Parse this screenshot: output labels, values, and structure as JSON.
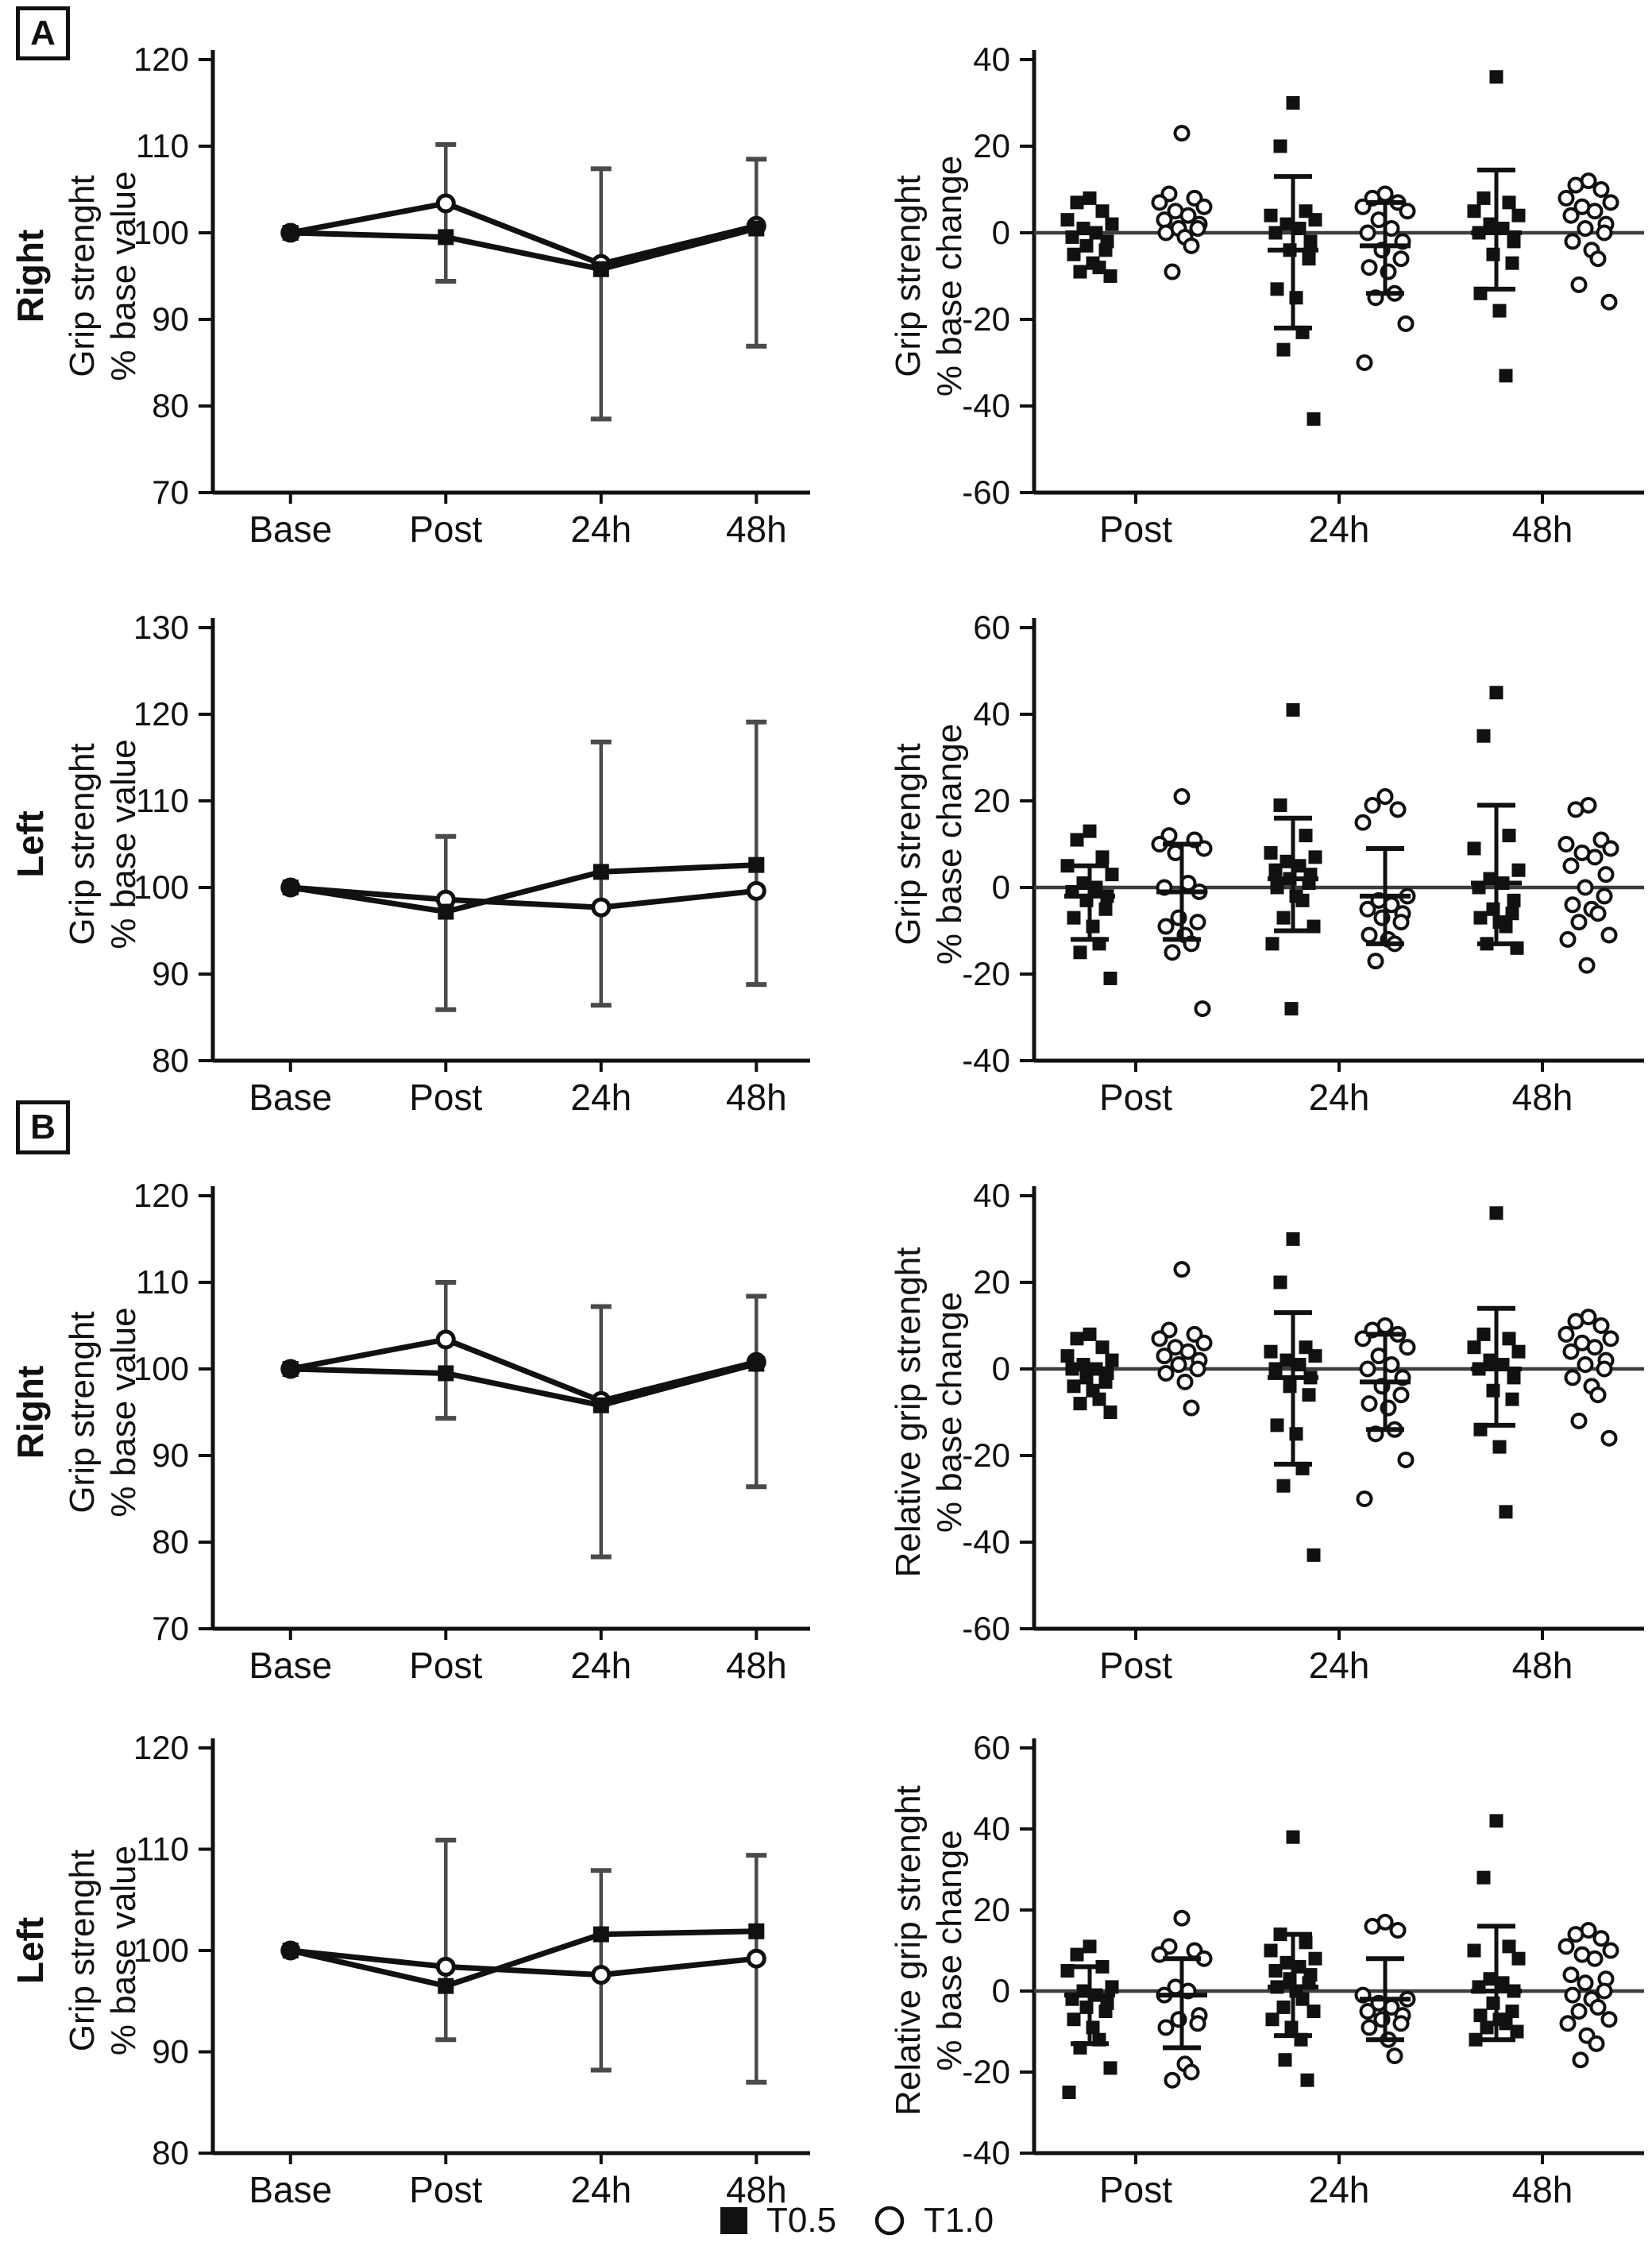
{
  "panel_labels": {
    "A": "A",
    "B": "B"
  },
  "legend": {
    "items": [
      {
        "label": "T0.5",
        "marker": "square"
      },
      {
        "label": "T1.0",
        "marker": "circle"
      }
    ]
  },
  "colors": {
    "ink": "#111111",
    "zero_line": "#3d3d3d",
    "err_line": "#4a4a4a",
    "background": "#ffffff"
  },
  "chart_data": [
    {
      "id": "panel-a-right-grip-value",
      "type": "line",
      "panel": "A",
      "row_label": "Right",
      "ylabel": [
        "Grip strenght",
        "% base value"
      ],
      "categories": [
        "Base",
        "Post",
        "24h",
        "48h"
      ],
      "y_min": 70,
      "y_max": 120,
      "y_step": 10,
      "series": [
        {
          "name": "T0.5",
          "marker": "square",
          "values": [
            100,
            99.5,
            95.8,
            100.5
          ]
        },
        {
          "name": "T1.0",
          "marker": "circle",
          "values": [
            100,
            103.4,
            96.4,
            100.8
          ]
        }
      ],
      "error_bars": [
        {
          "cat": "Post",
          "low": 94.4,
          "high": 110.2
        },
        {
          "cat": "24h",
          "low": 78.5,
          "high": 107.4
        },
        {
          "cat": "48h",
          "low": 86.9,
          "high": 108.5
        }
      ]
    },
    {
      "id": "panel-a-right-grip-change",
      "type": "scatter",
      "panel": "A",
      "ylabel": [
        "Grip strenght",
        "% base change"
      ],
      "categories": [
        "Post",
        "24h",
        "48h"
      ],
      "y_min": -60,
      "y_max": 40,
      "y_step": 20,
      "groups": [
        {
          "cat": "Post",
          "series": "T0.5",
          "points": [
            8,
            7,
            5,
            3,
            2,
            1,
            0,
            -1,
            -2,
            -3,
            -4,
            -5,
            -7,
            -8,
            -9,
            -10
          ]
        },
        {
          "cat": "Post",
          "series": "T1.0",
          "points": [
            23,
            9,
            8,
            7,
            6,
            5,
            4,
            3,
            2,
            1,
            1,
            0,
            -1,
            -3,
            -9
          ]
        },
        {
          "cat": "24h",
          "series": "T0.5",
          "points": [
            30,
            20,
            5,
            4,
            3,
            2,
            1,
            0,
            -2,
            -4,
            -6,
            -13,
            -15,
            -23,
            -27,
            -43
          ],
          "err": {
            "low": -22,
            "mid": -4,
            "high": 13
          }
        },
        {
          "cat": "24h",
          "series": "T1.0",
          "points": [
            9,
            8,
            7,
            6,
            5,
            3,
            1,
            0,
            -2,
            -4,
            -6,
            -8,
            -9,
            -14,
            -15,
            -21,
            -30
          ],
          "err": {
            "low": -14,
            "mid": -3,
            "high": 7
          }
        },
        {
          "cat": "48h",
          "series": "T0.5",
          "points": [
            36,
            8,
            7,
            5,
            4,
            2,
            1,
            0,
            -2,
            -5,
            -7,
            -14,
            -18,
            -33
          ],
          "err": {
            "low": -13,
            "mid": 0,
            "high": 14.5
          }
        },
        {
          "cat": "48h",
          "series": "T1.0",
          "points": [
            12,
            11,
            10,
            8,
            7,
            6,
            5,
            4,
            2,
            1,
            0,
            -2,
            -4,
            -6,
            -12,
            -16
          ]
        }
      ]
    },
    {
      "id": "panel-a-left-grip-value",
      "type": "line",
      "panel": "A",
      "row_label": "Left",
      "ylabel": [
        "Grip strenght",
        "% base value"
      ],
      "categories": [
        "Base",
        "Post",
        "24h",
        "48h"
      ],
      "y_min": 80,
      "y_max": 130,
      "y_step": 10,
      "series": [
        {
          "name": "T0.5",
          "marker": "square",
          "values": [
            100,
            97.2,
            101.8,
            102.6
          ]
        },
        {
          "name": "T1.0",
          "marker": "circle",
          "values": [
            100,
            98.6,
            97.7,
            99.6
          ]
        }
      ],
      "error_bars": [
        {
          "cat": "Post",
          "low": 85.9,
          "high": 105.9
        },
        {
          "cat": "24h",
          "low": 86.4,
          "high": 116.8
        },
        {
          "cat": "48h",
          "low": 88.8,
          "high": 119.1
        }
      ]
    },
    {
      "id": "panel-a-left-grip-change",
      "type": "scatter",
      "panel": "A",
      "ylabel": [
        "Grip strenght",
        "% base change"
      ],
      "categories": [
        "Post",
        "24h",
        "48h"
      ],
      "y_min": -40,
      "y_max": 60,
      "y_step": 20,
      "groups": [
        {
          "cat": "Post",
          "series": "T0.5",
          "points": [
            13,
            11,
            7,
            5,
            3,
            1,
            0,
            -1,
            -2,
            -3,
            -5,
            -7,
            -9,
            -13,
            -15,
            -21
          ],
          "err": {
            "low": -12,
            "mid": -2,
            "high": 5
          }
        },
        {
          "cat": "Post",
          "series": "T1.0",
          "points": [
            21,
            12,
            11,
            10,
            9,
            8,
            1,
            0,
            -1,
            -7,
            -8,
            -9,
            -11,
            -13,
            -15,
            -28
          ],
          "err": {
            "low": -12,
            "mid": -1,
            "high": 10
          }
        },
        {
          "cat": "24h",
          "series": "T0.5",
          "points": [
            41,
            19,
            12,
            8,
            7,
            6,
            5,
            4,
            3,
            2,
            1,
            0,
            -2,
            -3,
            -7,
            -9,
            -13,
            -28
          ],
          "err": {
            "low": -10,
            "mid": 2,
            "high": 16
          }
        },
        {
          "cat": "24h",
          "series": "T1.0",
          "points": [
            21,
            19,
            18,
            15,
            -2,
            -3,
            -4,
            -5,
            -6,
            -7,
            -8,
            -11,
            -12,
            -13,
            -17
          ],
          "err": {
            "low": -13,
            "mid": -2,
            "high": 9
          }
        },
        {
          "cat": "48h",
          "series": "T0.5",
          "points": [
            45,
            35,
            12,
            9,
            4,
            2,
            1,
            0,
            -3,
            -5,
            -6,
            -7,
            -8,
            -9,
            -13,
            -14
          ],
          "err": {
            "low": -13,
            "mid": 1,
            "high": 19
          }
        },
        {
          "cat": "48h",
          "series": "T1.0",
          "points": [
            19,
            18,
            11,
            10,
            9,
            8,
            7,
            5,
            3,
            0,
            -2,
            -4,
            -5,
            -6,
            -8,
            -11,
            -12,
            -18
          ]
        }
      ]
    },
    {
      "id": "panel-b-right-grip-value",
      "type": "line",
      "panel": "B",
      "row_label": "Right",
      "ylabel": [
        "Grip strenght",
        "% base value"
      ],
      "categories": [
        "Base",
        "Post",
        "24h",
        "48h"
      ],
      "y_min": 70,
      "y_max": 120,
      "y_step": 10,
      "series": [
        {
          "name": "T0.5",
          "marker": "square",
          "values": [
            100,
            99.5,
            95.8,
            100.6
          ]
        },
        {
          "name": "T1.0",
          "marker": "circle",
          "values": [
            100,
            103.4,
            96.3,
            100.8
          ]
        }
      ],
      "error_bars": [
        {
          "cat": "Post",
          "low": 94.3,
          "high": 110.0
        },
        {
          "cat": "24h",
          "low": 78.3,
          "high": 107.2
        },
        {
          "cat": "48h",
          "low": 86.4,
          "high": 108.4
        }
      ]
    },
    {
      "id": "panel-b-right-grip-change",
      "type": "scatter",
      "panel": "B",
      "ylabel": [
        "Relative grip strenght",
        "% base change"
      ],
      "categories": [
        "Post",
        "24h",
        "48h"
      ],
      "y_min": -60,
      "y_max": 40,
      "y_step": 20,
      "groups": [
        {
          "cat": "Post",
          "series": "T0.5",
          "points": [
            8,
            7,
            5,
            3,
            2,
            1,
            0,
            0,
            -1,
            -2,
            -3,
            -4,
            -5,
            -7,
            -8,
            -10
          ]
        },
        {
          "cat": "Post",
          "series": "T1.0",
          "points": [
            23,
            9,
            8,
            7,
            6,
            5,
            4,
            3,
            2,
            1,
            0,
            -1,
            -3,
            -9
          ]
        },
        {
          "cat": "24h",
          "series": "T0.5",
          "points": [
            30,
            20,
            5,
            4,
            3,
            2,
            1,
            0,
            -2,
            -4,
            -6,
            -13,
            -15,
            -23,
            -27,
            -43
          ],
          "err": {
            "low": -22,
            "mid": -2,
            "high": 13
          }
        },
        {
          "cat": "24h",
          "series": "T1.0",
          "points": [
            10,
            9,
            8,
            7,
            5,
            3,
            1,
            0,
            -2,
            -4,
            -6,
            -8,
            -9,
            -14,
            -15,
            -21,
            -30
          ],
          "err": {
            "low": -14,
            "mid": -3,
            "high": 8
          }
        },
        {
          "cat": "48h",
          "series": "T0.5",
          "points": [
            36,
            8,
            7,
            5,
            4,
            2,
            1,
            0,
            -2,
            -5,
            -7,
            -14,
            -18,
            -33
          ],
          "err": {
            "low": -13,
            "mid": 0,
            "high": 14
          }
        },
        {
          "cat": "48h",
          "series": "T1.0",
          "points": [
            12,
            11,
            10,
            8,
            7,
            6,
            5,
            4,
            2,
            1,
            0,
            -2,
            -4,
            -6,
            -12,
            -16
          ]
        }
      ]
    },
    {
      "id": "panel-b-left-grip-value",
      "type": "line",
      "panel": "B",
      "row_label": "Left",
      "ylabel": [
        "Grip strenght",
        "% base value"
      ],
      "categories": [
        "Base",
        "Post",
        "24h",
        "48h"
      ],
      "y_min": 80,
      "y_max": 120,
      "y_step": 10,
      "series": [
        {
          "name": "T0.5",
          "marker": "square",
          "values": [
            100,
            96.5,
            101.6,
            101.9
          ]
        },
        {
          "name": "T1.0",
          "marker": "circle",
          "values": [
            100,
            98.4,
            97.6,
            99.2
          ]
        }
      ],
      "error_bars": [
        {
          "cat": "Post",
          "low": 91.2,
          "high": 110.9
        },
        {
          "cat": "24h",
          "low": 88.2,
          "high": 107.9
        },
        {
          "cat": "48h",
          "low": 87.0,
          "high": 109.4
        }
      ]
    },
    {
      "id": "panel-b-left-grip-change",
      "type": "scatter",
      "panel": "B",
      "ylabel": [
        "Relative grip strenght",
        "% base change"
      ],
      "categories": [
        "Post",
        "24h",
        "48h"
      ],
      "y_min": -40,
      "y_max": 60,
      "y_step": 20,
      "groups": [
        {
          "cat": "Post",
          "series": "T0.5",
          "points": [
            11,
            9,
            6,
            5,
            1,
            0,
            -1,
            -2,
            -3,
            -4,
            -5,
            -7,
            -9,
            -12,
            -14,
            -19,
            -25
          ],
          "err": {
            "low": -13,
            "mid": -1,
            "high": 6
          }
        },
        {
          "cat": "Post",
          "series": "T1.0",
          "points": [
            18,
            11,
            10,
            9,
            8,
            1,
            0,
            -1,
            -6,
            -7,
            -8,
            -9,
            -18,
            -20,
            -22
          ],
          "err": {
            "low": -14,
            "mid": -1,
            "high": 8
          }
        },
        {
          "cat": "24h",
          "series": "T0.5",
          "points": [
            38,
            14,
            12,
            10,
            8,
            7,
            6,
            5,
            4,
            3,
            2,
            1,
            0,
            -2,
            -4,
            -5,
            -7,
            -9,
            -12,
            -17,
            -22
          ],
          "err": {
            "low": -11,
            "mid": 1,
            "high": 14
          }
        },
        {
          "cat": "24h",
          "series": "T1.0",
          "points": [
            17,
            16,
            15,
            -1,
            -2,
            -3,
            -4,
            -5,
            -6,
            -7,
            -8,
            -9,
            -12,
            -16
          ],
          "err": {
            "low": -12,
            "mid": -2,
            "high": 8
          }
        },
        {
          "cat": "48h",
          "series": "T0.5",
          "points": [
            42,
            28,
            11,
            10,
            8,
            3,
            2,
            1,
            0,
            -3,
            -5,
            -6,
            -7,
            -8,
            -9,
            -10,
            -12
          ],
          "err": {
            "low": -12,
            "mid": 0,
            "high": 16
          }
        },
        {
          "cat": "48h",
          "series": "T1.0",
          "points": [
            15,
            14,
            13,
            11,
            10,
            9,
            8,
            4,
            3,
            2,
            0,
            -1,
            -2,
            -4,
            -5,
            -7,
            -8,
            -11,
            -13,
            -17
          ]
        }
      ]
    }
  ]
}
